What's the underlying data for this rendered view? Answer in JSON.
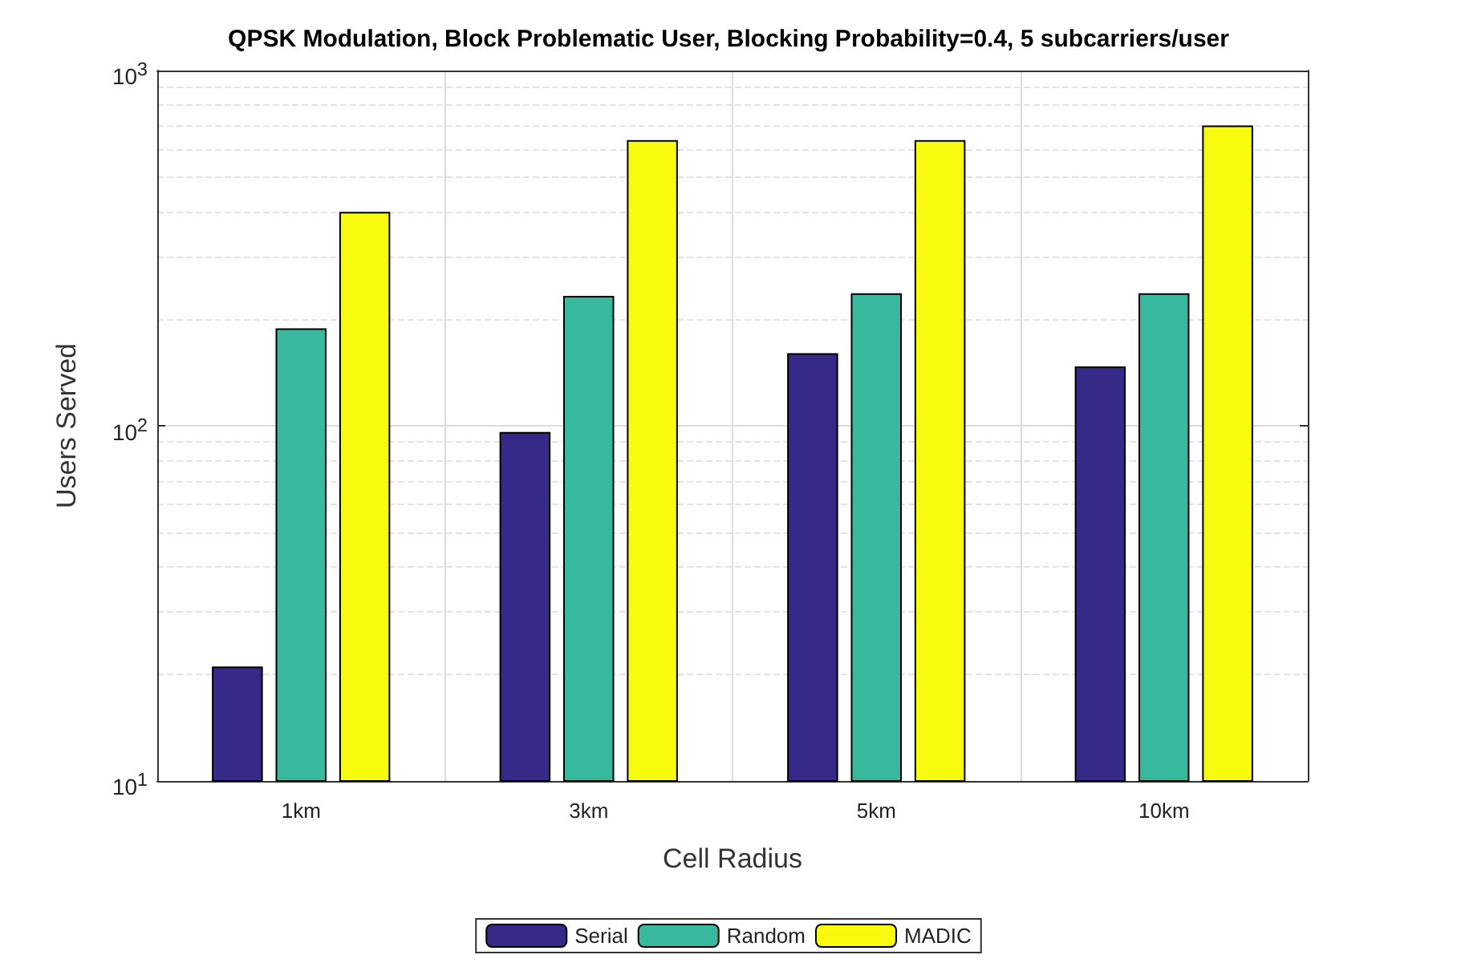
{
  "chart_data": {
    "type": "bar",
    "title": "QPSK Modulation, Block Problematic User, Blocking Probability=0.4, 5 subcarriers/user",
    "xlabel": "Cell Radius",
    "ylabel": "Users Served",
    "categories": [
      "1km",
      "3km",
      "5km",
      "10km"
    ],
    "series": [
      {
        "name": "Serial",
        "color": "#352a87",
        "values": [
          21,
          96,
          160,
          147
        ]
      },
      {
        "name": "Random",
        "color": "#38b99e",
        "values": [
          188,
          232,
          236,
          236
        ]
      },
      {
        "name": "MADIC",
        "color": "#f9fb0e",
        "values": [
          400,
          637,
          637,
          700
        ]
      }
    ],
    "log": true,
    "ylim": [
      10,
      1000
    ],
    "yticks": [
      {
        "value": 10,
        "label": "10$^{1}$"
      },
      {
        "value": 100,
        "label": "10$^{2}$"
      },
      {
        "value": 1000,
        "label": "10$^{3}$"
      }
    ],
    "grid": true,
    "legend": "bottom"
  }
}
